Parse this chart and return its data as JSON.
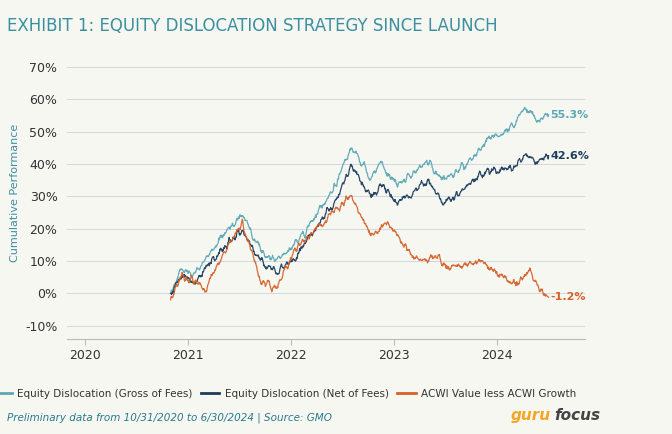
{
  "title": "EXHIBIT 1: EQUITY DISLOCATION STRATEGY SINCE LAUNCH",
  "ylabel": "Cumulative Performance",
  "footnote": "Preliminary data from 10/31/2020 to 6/30/2024 | Source: GMO",
  "yticks": [
    -10,
    0,
    10,
    20,
    30,
    40,
    50,
    60,
    70
  ],
  "ylim": [
    -14,
    76
  ],
  "xlim_start": 2019.83,
  "xlim_end": 2024.85,
  "color_gross": "#5ba8b5",
  "color_net": "#1e3d5c",
  "color_acwi": "#d4622a",
  "label_gross": "55.3%",
  "label_net": "42.6%",
  "label_acwi": "-1.2%",
  "legend_gross": "Equity Dislocation (Gross of Fees)",
  "legend_net": "Equity Dislocation (Net of Fees)",
  "legend_acwi": "ACWI Value less ACWI Growth",
  "title_color": "#3a8fa0",
  "footnote_color": "#2a7a8c",
  "ylabel_color": "#3a8fa0",
  "gurufocus_color_guru": "#f5a623",
  "gurufocus_color_focus": "#444444",
  "background_color": "#f7f7f2",
  "grid_color": "#d0d8e0",
  "spine_color": "#bbbbbb"
}
